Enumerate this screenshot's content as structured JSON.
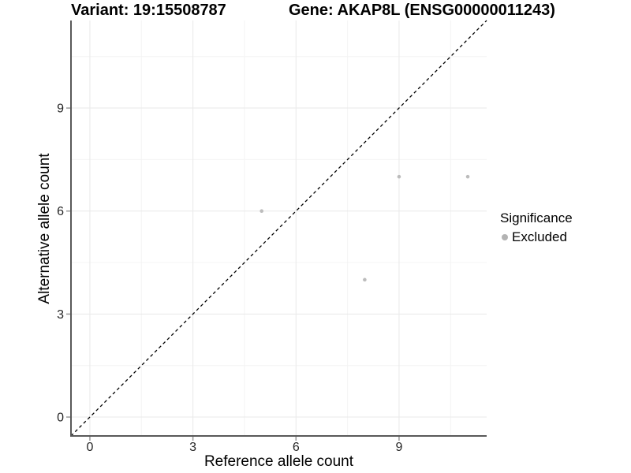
{
  "titles": {
    "variant": "Variant: 19:15508787",
    "gene": "Gene: AKAP8L (ENSG00000011243)"
  },
  "colors": {
    "background": "#ffffff",
    "axis_line": "#595959",
    "tick_mark": "#999999",
    "tick_label": "#262626",
    "grid_major": "#e9e9e9",
    "grid_minor": "#f4f4f4",
    "identity_line": "#000000",
    "excluded_point": "#bcbcbc",
    "legend_dot": "#b3b3b3"
  },
  "chart_data": {
    "type": "scatter",
    "title_left": "Variant: 19:15508787",
    "title_right": "Gene: AKAP8L (ENSG00000011243)",
    "xlabel": "Reference allele count",
    "ylabel": "Alternative allele count",
    "xlim": [
      -0.55,
      11.55
    ],
    "ylim": [
      -0.55,
      11.55
    ],
    "x_ticks": [
      0,
      3,
      6,
      9
    ],
    "y_ticks": [
      0,
      3,
      6,
      9
    ],
    "x_minor_ticks": [
      1.5,
      4.5,
      7.5,
      10.5
    ],
    "y_minor_ticks": [
      1.5,
      4.5,
      7.5,
      10.5
    ],
    "grid": "major+minor",
    "identity_line": {
      "equation": "y = x",
      "style": "dashed",
      "color": "#000000"
    },
    "legend": {
      "title": "Significance",
      "position": "right",
      "items": [
        {
          "label": "Excluded",
          "color": "#b3b3b3"
        }
      ]
    },
    "series": [
      {
        "name": "Excluded",
        "color": "#bcbcbc",
        "points": [
          [
            5,
            6
          ],
          [
            8,
            4
          ],
          [
            9,
            7
          ],
          [
            11,
            7
          ]
        ]
      }
    ]
  }
}
